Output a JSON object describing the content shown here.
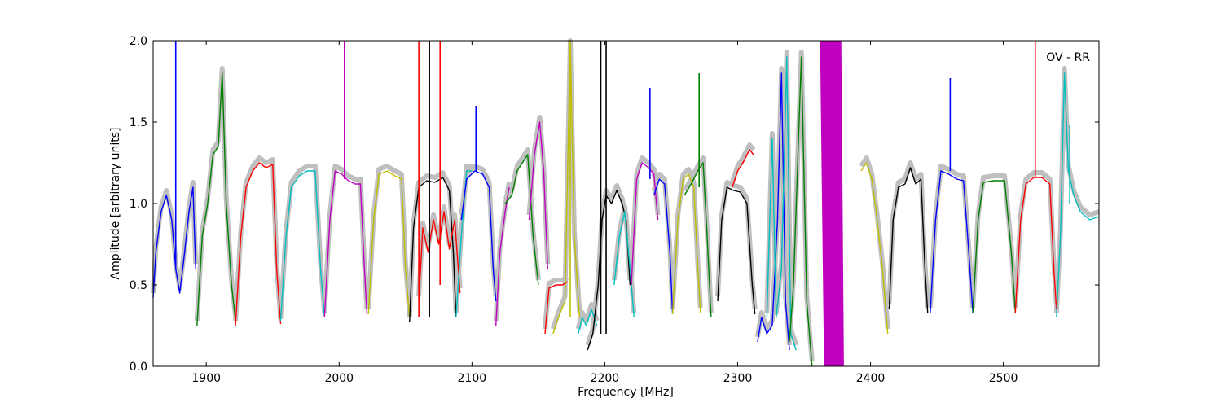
{
  "chart_data": {
    "type": "line",
    "title": "",
    "xlabel": "Frequency [MHz]",
    "ylabel": "Amplitude [arbitrary units]",
    "xlim": [
      1860,
      2572
    ],
    "ylim": [
      0.0,
      2.0
    ],
    "xticks": [
      1900,
      2000,
      2100,
      2200,
      2300,
      2400,
      2500
    ],
    "yticks": [
      0.0,
      0.5,
      1.0,
      1.5,
      2.0
    ],
    "annotation": "OV - RR",
    "grid": false,
    "reference_color": "#bfbfbf",
    "series": [
      {
        "color": "#0000ff",
        "points": [
          [
            1860,
            0.42
          ],
          [
            1862,
            0.7
          ],
          [
            1866,
            0.95
          ],
          [
            1870,
            1.05
          ],
          [
            1874,
            0.9
          ],
          [
            1877,
            0.6
          ],
          [
            1880,
            0.45
          ],
          [
            1883,
            0.65
          ],
          [
            1887,
            0.95
          ],
          [
            1890,
            1.1
          ],
          [
            1892,
            0.6
          ]
        ]
      },
      {
        "color": "#008000",
        "points": [
          [
            1893,
            0.25
          ],
          [
            1897,
            0.8
          ],
          [
            1901,
            1.0
          ],
          [
            1905,
            1.3
          ],
          [
            1909,
            1.35
          ],
          [
            1912,
            1.8
          ],
          [
            1915,
            1.0
          ],
          [
            1919,
            0.5
          ],
          [
            1922,
            0.28
          ]
        ]
      },
      {
        "color": "#ff0000",
        "points": [
          [
            1922,
            0.25
          ],
          [
            1926,
            0.8
          ],
          [
            1930,
            1.1
          ],
          [
            1935,
            1.2
          ],
          [
            1940,
            1.25
          ],
          [
            1945,
            1.22
          ],
          [
            1950,
            1.24
          ],
          [
            1953,
            0.6
          ],
          [
            1956,
            0.26
          ]
        ]
      },
      {
        "color": "#00bfbf",
        "points": [
          [
            1956,
            0.28
          ],
          [
            1960,
            0.8
          ],
          [
            1964,
            1.1
          ],
          [
            1970,
            1.17
          ],
          [
            1976,
            1.2
          ],
          [
            1982,
            1.2
          ],
          [
            1986,
            0.6
          ],
          [
            1989,
            0.3
          ]
        ]
      },
      {
        "color": "#bf00bf",
        "points": [
          [
            1989,
            0.3
          ],
          [
            1993,
            0.9
          ],
          [
            1997,
            1.2
          ],
          [
            2002,
            1.18
          ],
          [
            2007,
            1.14
          ],
          [
            2012,
            1.12
          ],
          [
            2016,
            1.12
          ],
          [
            2019,
            0.6
          ],
          [
            2021,
            0.32
          ]
        ]
      },
      {
        "color": "#bfbf00",
        "points": [
          [
            2022,
            0.32
          ],
          [
            2026,
            0.9
          ],
          [
            2030,
            1.18
          ],
          [
            2036,
            1.2
          ],
          [
            2042,
            1.17
          ],
          [
            2047,
            1.15
          ],
          [
            2050,
            0.6
          ],
          [
            2053,
            0.3
          ]
        ]
      },
      {
        "color": "#000000",
        "points": [
          [
            2053,
            0.27
          ],
          [
            2056,
            0.85
          ],
          [
            2060,
            1.1
          ],
          [
            2066,
            1.14
          ],
          [
            2072,
            1.13
          ],
          [
            2078,
            1.16
          ],
          [
            2083,
            1.08
          ],
          [
            2086,
            0.7
          ],
          [
            2088,
            0.3
          ]
        ]
      },
      {
        "color": "#ff0000",
        "points": [
          [
            2060,
            0.4
          ],
          [
            2063,
            0.85
          ],
          [
            2067,
            0.7
          ],
          [
            2071,
            0.9
          ],
          [
            2075,
            0.75
          ],
          [
            2079,
            0.95
          ],
          [
            2083,
            0.72
          ],
          [
            2087,
            0.9
          ],
          [
            2091,
            0.45
          ]
        ]
      },
      {
        "color": "#00bfbf",
        "points": [
          [
            2088,
            0.3
          ],
          [
            2092,
            0.8
          ],
          [
            2096,
            1.2
          ],
          [
            2100,
            1.2
          ]
        ]
      },
      {
        "color": "#0000ff",
        "points": [
          [
            2092,
            0.9
          ],
          [
            2096,
            1.15
          ],
          [
            2102,
            1.2
          ],
          [
            2108,
            1.18
          ],
          [
            2113,
            1.1
          ],
          [
            2116,
            0.6
          ],
          [
            2118,
            0.4
          ]
        ]
      },
      {
        "color": "#bf00bf",
        "points": [
          [
            2118,
            0.25
          ],
          [
            2121,
            0.7
          ],
          [
            2125,
            0.95
          ],
          [
            2128,
            1.1
          ]
        ]
      },
      {
        "color": "#008000",
        "points": [
          [
            2125,
            1.0
          ],
          [
            2130,
            1.05
          ],
          [
            2134,
            1.2
          ],
          [
            2138,
            1.25
          ],
          [
            2142,
            1.3
          ],
          [
            2146,
            0.8
          ],
          [
            2150,
            0.5
          ]
        ]
      },
      {
        "color": "#bf00bf",
        "points": [
          [
            2143,
            0.9
          ],
          [
            2147,
            1.3
          ],
          [
            2151,
            1.5
          ],
          [
            2154,
            1.2
          ],
          [
            2157,
            0.6
          ]
        ]
      },
      {
        "color": "#ff0000",
        "points": [
          [
            2155,
            0.2
          ],
          [
            2158,
            0.48
          ],
          [
            2163,
            0.5
          ],
          [
            2168,
            0.5
          ],
          [
            2172,
            0.52
          ]
        ]
      },
      {
        "color": "#bfbf00",
        "points": [
          [
            2161,
            0.2
          ],
          [
            2165,
            0.3
          ],
          [
            2170,
            0.4
          ],
          [
            2174,
            2.0
          ],
          [
            2177,
            0.8
          ],
          [
            2181,
            0.3
          ]
        ]
      },
      {
        "color": "#00bfbf",
        "points": [
          [
            2180,
            0.2
          ],
          [
            2183,
            0.3
          ],
          [
            2186,
            0.25
          ],
          [
            2190,
            0.35
          ],
          [
            2194,
            0.25
          ]
        ]
      },
      {
        "color": "#000000",
        "points": [
          [
            2187,
            0.1
          ],
          [
            2191,
            0.2
          ],
          [
            2195,
            0.5
          ],
          [
            2198,
            0.9
          ],
          [
            2201,
            1.05
          ],
          [
            2205,
            1.0
          ],
          [
            2209,
            1.08
          ],
          [
            2213,
            1.0
          ],
          [
            2216,
            0.9
          ],
          [
            2219,
            0.5
          ]
        ]
      },
      {
        "color": "#00bfbf",
        "points": [
          [
            2207,
            0.5
          ],
          [
            2211,
            0.8
          ],
          [
            2215,
            0.95
          ],
          [
            2219,
            0.6
          ],
          [
            2222,
            0.3
          ]
        ]
      },
      {
        "color": "#bf00bf",
        "points": [
          [
            2220,
            0.5
          ],
          [
            2224,
            1.15
          ],
          [
            2228,
            1.25
          ],
          [
            2233,
            1.22
          ],
          [
            2237,
            1.18
          ],
          [
            2240,
            0.9
          ]
        ]
      },
      {
        "color": "#0000ff",
        "points": [
          [
            2237,
            1.05
          ],
          [
            2241,
            1.15
          ],
          [
            2245,
            1.12
          ],
          [
            2249,
            0.7
          ],
          [
            2251,
            0.32
          ]
        ]
      },
      {
        "color": "#bfbf00",
        "points": [
          [
            2251,
            0.32
          ],
          [
            2255,
            0.9
          ],
          [
            2259,
            1.15
          ],
          [
            2263,
            1.18
          ],
          [
            2267,
            1.1
          ],
          [
            2270,
            0.6
          ],
          [
            2272,
            0.33
          ]
        ]
      },
      {
        "color": "#008000",
        "points": [
          [
            2260,
            1.05
          ],
          [
            2265,
            1.12
          ],
          [
            2270,
            1.2
          ],
          [
            2274,
            1.25
          ],
          [
            2277,
            0.8
          ],
          [
            2280,
            0.3
          ]
        ]
      },
      {
        "color": "#000000",
        "points": [
          [
            2285,
            0.4
          ],
          [
            2288,
            0.9
          ],
          [
            2292,
            1.1
          ],
          [
            2297,
            1.08
          ],
          [
            2302,
            1.07
          ],
          [
            2307,
            1.0
          ],
          [
            2311,
            0.5
          ],
          [
            2313,
            0.32
          ]
        ]
      },
      {
        "color": "#ff0000",
        "points": [
          [
            2296,
            1.1
          ],
          [
            2300,
            1.2
          ],
          [
            2304,
            1.25
          ],
          [
            2309,
            1.33
          ],
          [
            2312,
            1.3
          ]
        ]
      },
      {
        "color": "#0000ff",
        "points": [
          [
            2315,
            0.15
          ],
          [
            2318,
            0.3
          ],
          [
            2322,
            0.2
          ],
          [
            2326,
            0.25
          ],
          [
            2330,
            0.9
          ],
          [
            2333,
            1.8
          ],
          [
            2336,
            0.4
          ],
          [
            2339,
            0.1
          ]
        ]
      },
      {
        "color": "#00bfbf",
        "points": [
          [
            2322,
            0.3
          ],
          [
            2326,
            1.4
          ],
          [
            2329,
            0.3
          ],
          [
            2333,
            0.6
          ],
          [
            2337,
            1.9
          ],
          [
            2340,
            0.2
          ],
          [
            2344,
            0.1
          ]
        ]
      },
      {
        "color": "#008000",
        "points": [
          [
            2339,
            0.15
          ],
          [
            2342,
            0.5
          ],
          [
            2345,
            1.2
          ],
          [
            2348,
            1.9
          ],
          [
            2352,
            0.4
          ],
          [
            2356,
            0.0
          ]
        ]
      },
      {
        "color": "#bfbf00",
        "points": [
          [
            2393,
            1.2
          ],
          [
            2397,
            1.25
          ],
          [
            2401,
            1.15
          ],
          [
            2405,
            0.9
          ],
          [
            2409,
            0.6
          ],
          [
            2413,
            0.2
          ]
        ]
      },
      {
        "color": "#000000",
        "points": [
          [
            2414,
            0.35
          ],
          [
            2417,
            0.9
          ],
          [
            2421,
            1.1
          ],
          [
            2426,
            1.12
          ],
          [
            2430,
            1.22
          ],
          [
            2434,
            1.12
          ],
          [
            2438,
            1.15
          ],
          [
            2441,
            0.6
          ],
          [
            2443,
            0.33
          ]
        ]
      },
      {
        "color": "#0000ff",
        "points": [
          [
            2445,
            0.33
          ],
          [
            2449,
            0.9
          ],
          [
            2453,
            1.2
          ],
          [
            2459,
            1.18
          ],
          [
            2465,
            1.15
          ],
          [
            2470,
            1.14
          ],
          [
            2474,
            0.7
          ],
          [
            2477,
            0.33
          ]
        ]
      },
      {
        "color": "#008000",
        "points": [
          [
            2477,
            0.33
          ],
          [
            2481,
            0.9
          ],
          [
            2485,
            1.13
          ],
          [
            2493,
            1.14
          ],
          [
            2501,
            1.14
          ],
          [
            2506,
            0.7
          ],
          [
            2509,
            0.33
          ]
        ]
      },
      {
        "color": "#ff0000",
        "points": [
          [
            2509,
            0.33
          ],
          [
            2513,
            0.9
          ],
          [
            2517,
            1.12
          ],
          [
            2523,
            1.16
          ],
          [
            2529,
            1.16
          ],
          [
            2535,
            1.12
          ],
          [
            2538,
            0.6
          ],
          [
            2540,
            0.35
          ]
        ]
      },
      {
        "color": "#00bfbf",
        "points": [
          [
            2540,
            0.3
          ],
          [
            2543,
            0.8
          ],
          [
            2546,
            1.8
          ],
          [
            2549,
            1.2
          ],
          [
            2553,
            1.05
          ],
          [
            2558,
            0.95
          ],
          [
            2565,
            0.9
          ],
          [
            2572,
            0.92
          ]
        ]
      }
    ],
    "spikes": [
      {
        "color": "#0000ff",
        "x": 1877,
        "base": 0.6,
        "top": 2.0
      },
      {
        "color": "#bf00bf",
        "x": 2004,
        "base": 1.15,
        "top": 2.0
      },
      {
        "color": "#ff0000",
        "x": 2060,
        "base": 0.3,
        "top": 2.0
      },
      {
        "color": "#ff0000",
        "x": 2076,
        "base": 0.5,
        "top": 2.0
      },
      {
        "color": "#000000",
        "x": 2068,
        "base": 0.3,
        "top": 2.0
      },
      {
        "color": "#0000ff",
        "x": 2103,
        "base": 1.2,
        "top": 1.6
      },
      {
        "color": "#bfbf00",
        "x": 2174,
        "base": 0.3,
        "top": 2.0
      },
      {
        "color": "#000000",
        "x": 2197,
        "base": 0.2,
        "top": 2.0
      },
      {
        "color": "#000000",
        "x": 2201,
        "base": 0.2,
        "top": 2.0
      },
      {
        "color": "#0000ff",
        "x": 2234,
        "base": 1.15,
        "top": 1.71
      },
      {
        "color": "#008000",
        "x": 2271,
        "base": 1.1,
        "top": 1.8
      },
      {
        "color": "#0000ff",
        "x": 2460,
        "base": 1.2,
        "top": 1.77
      },
      {
        "color": "#ff0000",
        "x": 2524,
        "base": 1.16,
        "top": 2.0
      },
      {
        "color": "#00bfbf",
        "x": 2550,
        "base": 1.0,
        "top": 1.48
      }
    ],
    "band": {
      "color": "#bf00bf",
      "x_start": 2360,
      "x_end": 2380,
      "y_min": 0.0,
      "y_max": 2.0
    }
  }
}
